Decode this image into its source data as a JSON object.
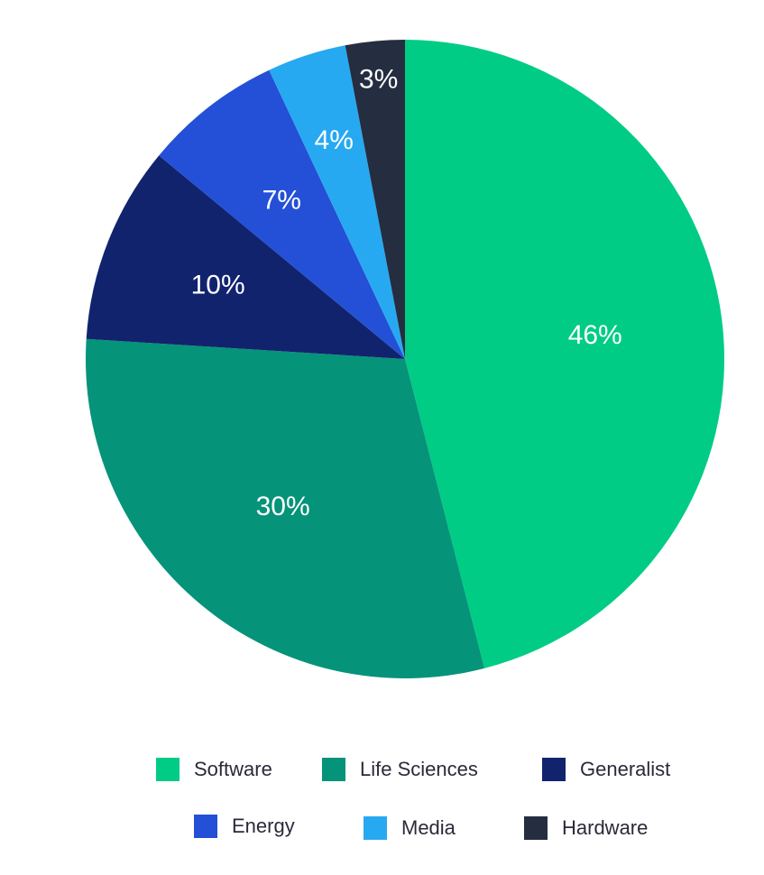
{
  "chart_data": {
    "type": "pie",
    "title": "",
    "slices": [
      {
        "name": "Software",
        "value": 46,
        "label": "46%",
        "color": "#00CC85"
      },
      {
        "name": "Life Sciences",
        "value": 30,
        "label": "30%",
        "color": "#05937A"
      },
      {
        "name": "Generalist",
        "value": 10,
        "label": "10%",
        "color": "#12236E"
      },
      {
        "name": "Energy",
        "value": 7,
        "label": "7%",
        "color": "#2350D6"
      },
      {
        "name": "Media",
        "value": 4,
        "label": "4%",
        "color": "#27A9F1"
      },
      {
        "name": "Hardware",
        "value": 3,
        "label": "3%",
        "color": "#252D40"
      }
    ],
    "start_angle": "12 o'clock",
    "direction": "clockwise",
    "legend_position": "bottom"
  }
}
